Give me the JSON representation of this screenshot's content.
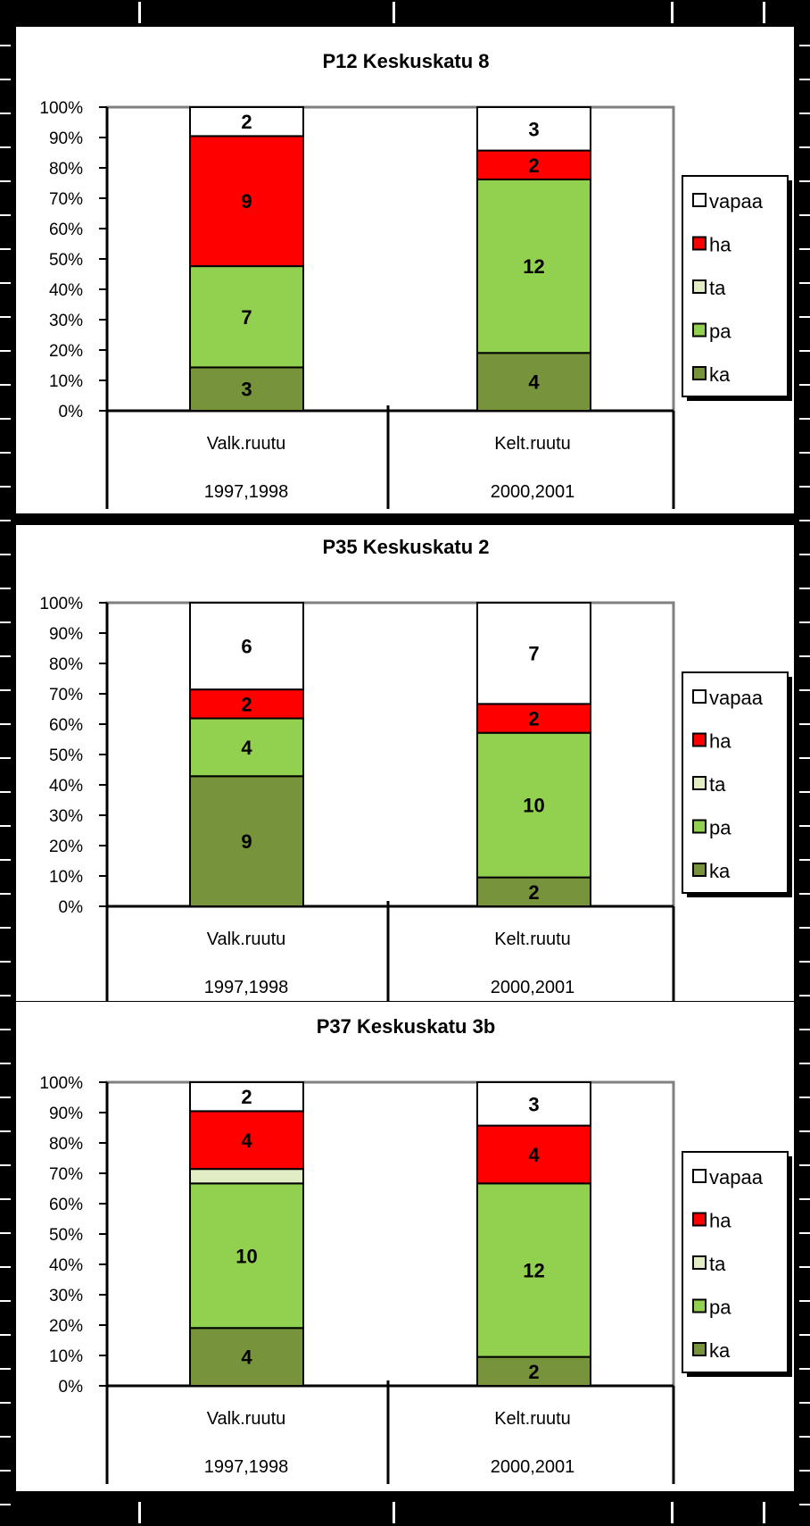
{
  "colors": {
    "vapaa": "#ffffff",
    "ha": "#ff0000",
    "ta": "#e2edc6",
    "pa": "#92d050",
    "ka": "#77933c",
    "background": "#000000",
    "panel": "#ffffff",
    "plot_border": "#808080"
  },
  "chart_data": [
    {
      "type": "bar",
      "stacked": "percent",
      "title": "P12 Keskuskatu   8",
      "categories": [
        "Valk.ruutu",
        "Kelt.ruutu"
      ],
      "category_periods": [
        "1997,1998",
        "2000,2001"
      ],
      "ylim": [
        0,
        100
      ],
      "y_ticks": [
        "0%",
        "10%",
        "20%",
        "30%",
        "40%",
        "50%",
        "60%",
        "70%",
        "80%",
        "90%",
        "100%"
      ],
      "legend_position": "right",
      "legend": [
        "vapaa",
        "ha",
        "ta",
        "pa",
        "ka"
      ],
      "series": [
        {
          "name": "ka",
          "values": [
            3,
            4
          ]
        },
        {
          "name": "pa",
          "values": [
            7,
            12
          ]
        },
        {
          "name": "ta",
          "values": [
            0,
            0
          ]
        },
        {
          "name": "ha",
          "values": [
            9,
            2
          ]
        },
        {
          "name": "vapaa",
          "values": [
            2,
            3
          ]
        }
      ]
    },
    {
      "type": "bar",
      "stacked": "percent",
      "title": "P35 Keskuskatu   2",
      "categories": [
        "Valk.ruutu",
        "Kelt.ruutu"
      ],
      "category_periods": [
        "1997,1998",
        "2000,2001"
      ],
      "ylim": [
        0,
        100
      ],
      "y_ticks": [
        "0%",
        "10%",
        "20%",
        "30%",
        "40%",
        "50%",
        "60%",
        "70%",
        "80%",
        "90%",
        "100%"
      ],
      "legend_position": "right",
      "legend": [
        "vapaa",
        "ha",
        "ta",
        "pa",
        "ka"
      ],
      "series": [
        {
          "name": "ka",
          "values": [
            9,
            2
          ]
        },
        {
          "name": "pa",
          "values": [
            4,
            10
          ]
        },
        {
          "name": "ta",
          "values": [
            0,
            0
          ]
        },
        {
          "name": "ha",
          "values": [
            2,
            2
          ]
        },
        {
          "name": "vapaa",
          "values": [
            6,
            7
          ]
        }
      ]
    },
    {
      "type": "bar",
      "stacked": "percent",
      "title": "P37 Keskuskatu   3b",
      "categories": [
        "Valk.ruutu",
        "Kelt.ruutu"
      ],
      "category_periods": [
        "1997,1998",
        "2000,2001"
      ],
      "ylim": [
        0,
        100
      ],
      "y_ticks": [
        "0%",
        "10%",
        "20%",
        "30%",
        "40%",
        "50%",
        "60%",
        "70%",
        "80%",
        "90%",
        "100%"
      ],
      "legend_position": "right",
      "legend": [
        "vapaa",
        "ha",
        "ta",
        "pa",
        "ka"
      ],
      "series": [
        {
          "name": "ka",
          "values": [
            4,
            2
          ]
        },
        {
          "name": "pa",
          "values": [
            10,
            12
          ]
        },
        {
          "name": "ta",
          "values": [
            1,
            0
          ]
        },
        {
          "name": "ha",
          "values": [
            4,
            4
          ]
        },
        {
          "name": "vapaa",
          "values": [
            2,
            3
          ]
        }
      ]
    }
  ]
}
